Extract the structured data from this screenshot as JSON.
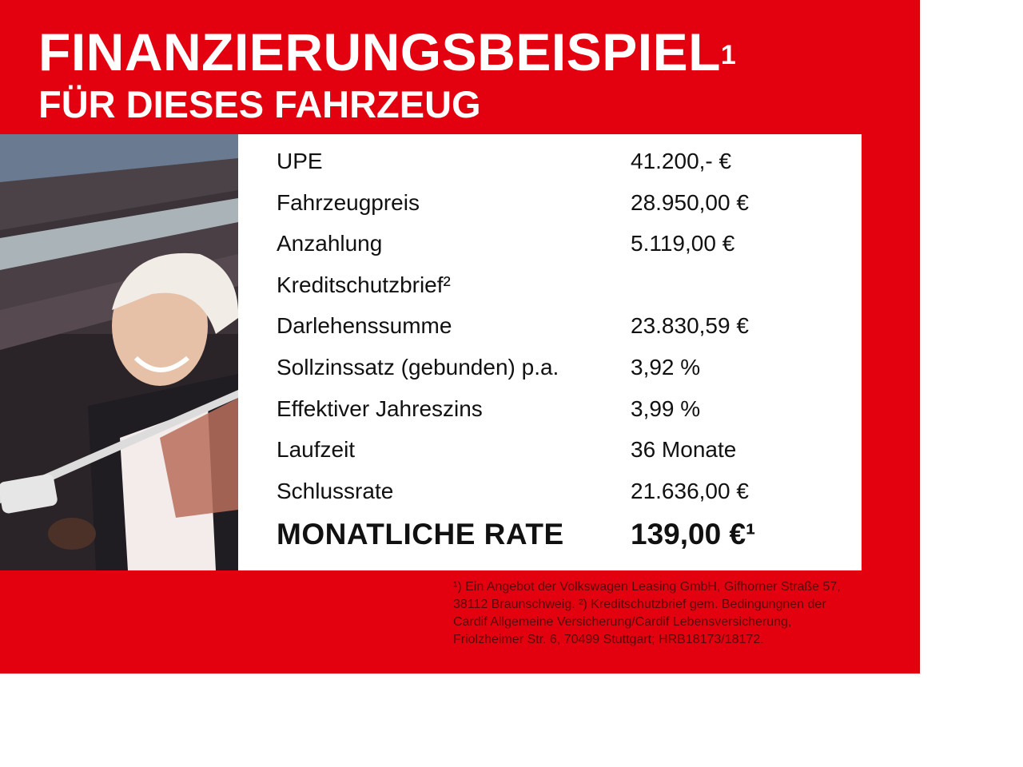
{
  "header": {
    "title": "FINANZIERUNGSBEISPIEL",
    "title_sup": "1",
    "subtitle": "FÜR DIESES FAHRZEUG"
  },
  "rows": [
    {
      "label": "UPE",
      "value": "41.200,- €"
    },
    {
      "label": "Fahrzeugpreis",
      "value": "28.950,00 €"
    },
    {
      "label": "Anzahlung",
      "value": "5.119,00 €"
    },
    {
      "label": "Kreditschutzbrief²",
      "value": ""
    },
    {
      "label": "Darlehenssumme",
      "value": "23.830,59 €"
    },
    {
      "label": "Sollzinssatz (gebunden) p.a.",
      "value": "3,92 %"
    },
    {
      "label": "Effektiver Jahreszins",
      "value": "3,99 %"
    },
    {
      "label": "Laufzeit",
      "value": "36 Monate"
    },
    {
      "label": "Schlussrate",
      "value": "21.636,00 €"
    }
  ],
  "total": {
    "label": "MONATLICHE RATE",
    "value": "139,00 €¹"
  },
  "footnote": "¹) Ein Angebot der Volkswagen Leasing GmbH, Gifhorner Straße 57, 38112 Braunschweig. ²) Kreditschutzbrief gem. Bedingungnen der Cardif Allgemeine Versicherung/Cardif Lebensversicherung, Friolzheimer Str. 6, 70499 Stuttgart; HRB18173/18172.",
  "colors": {
    "brand_red": "#e3000f",
    "text": "#111111",
    "white": "#ffffff"
  }
}
